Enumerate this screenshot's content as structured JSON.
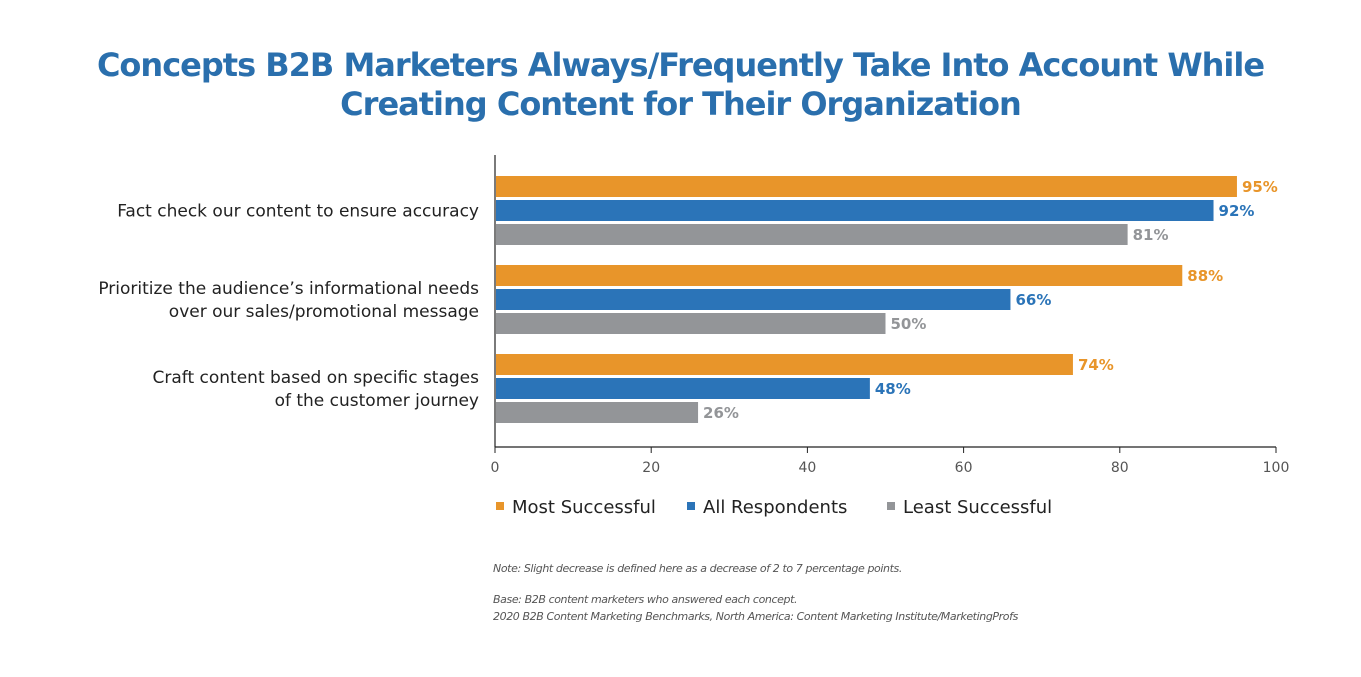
{
  "chart_data": {
    "type": "bar",
    "orientation": "horizontal",
    "title_lines": [
      "Concepts B2B Marketers Always/Frequently Take Into Account While",
      "Creating Content for Their Organization"
    ],
    "categories": [
      [
        "Fact check our content to ensure accuracy"
      ],
      [
        "Prioritize the audience’s informational needs",
        "over our sales/promotional message"
      ],
      [
        "Craft content based on specific stages",
        "of the customer journey"
      ]
    ],
    "series": [
      {
        "name": "Most Successful",
        "color": "#e8952a",
        "values": [
          95,
          88,
          74
        ],
        "labels": [
          "95%",
          "88%",
          "74%"
        ]
      },
      {
        "name": "All Respondents",
        "color": "#2b74b8",
        "values": [
          92,
          66,
          48
        ],
        "labels": [
          "92%",
          "66%",
          "48%"
        ]
      },
      {
        "name": "Least Successful",
        "color": "#939598",
        "values": [
          81,
          50,
          26
        ],
        "labels": [
          "81%",
          "50%",
          "26%"
        ]
      }
    ],
    "xlim": [
      0,
      100
    ],
    "xticks": [
      "0",
      "20",
      "40",
      "60",
      "80",
      "100"
    ],
    "grid": false,
    "legend_position": "bottom"
  },
  "notes": {
    "note": "Note: Slight decrease is defined here as a decrease of 2 to 7 percentage points.",
    "base": "Base: B2B content marketers who answered each concept.",
    "source": "2020 B2B Content Marketing Benchmarks, North America: Content Marketing Institute/MarketingProfs"
  }
}
